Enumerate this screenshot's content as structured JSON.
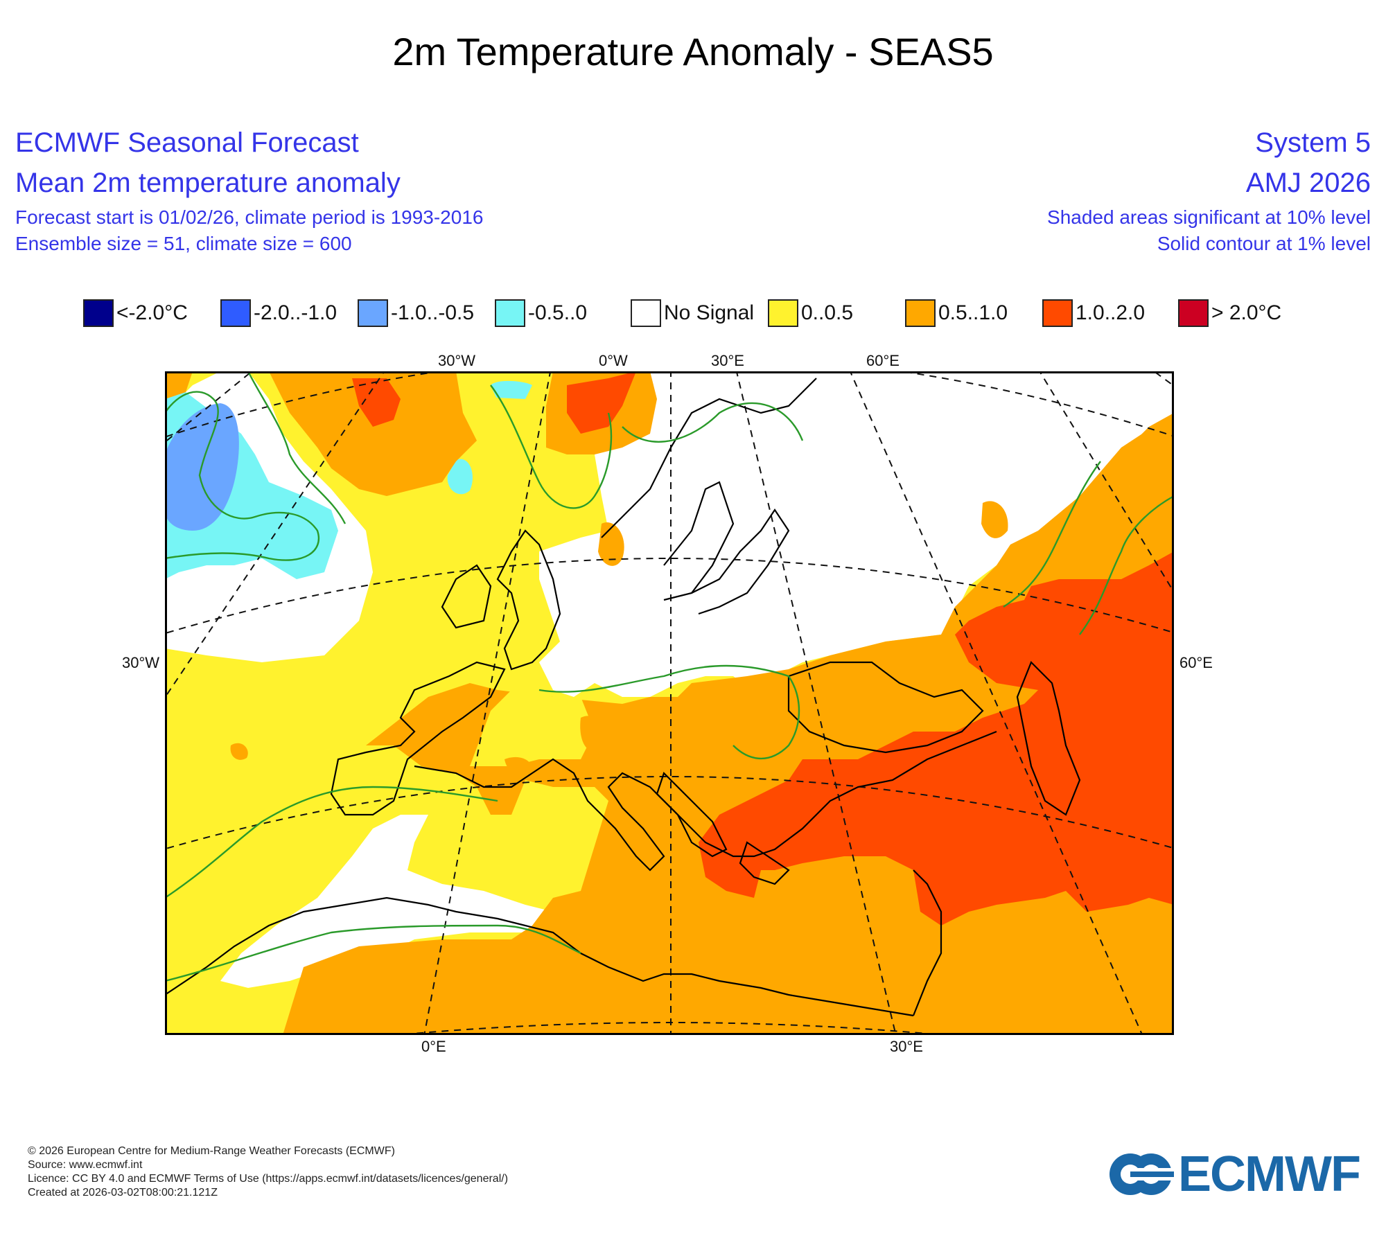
{
  "title": "2m Temperature Anomaly - SEAS5",
  "header": {
    "left": {
      "line1": "ECMWF Seasonal Forecast",
      "line2": "Mean 2m temperature anomaly",
      "line3": "Forecast start is 01/02/26, climate period is 1993-2016",
      "line4": "Ensemble size = 51, climate size = 600"
    },
    "right": {
      "line1": "System 5",
      "line2": "AMJ 2026",
      "line3": "Shaded areas significant at 10% level",
      "line4": "Solid contour at 1% level"
    }
  },
  "legend": [
    {
      "label": "<-2.0°C",
      "color": "#00008c"
    },
    {
      "label": "-2.0..-1.0",
      "color": "#2f5cff"
    },
    {
      "label": "-1.0..-0.5",
      "color": "#6aa6ff"
    },
    {
      "label": "-0.5..0",
      "color": "#77f5f5"
    },
    {
      "label": "No Signal",
      "color": "#ffffff"
    },
    {
      "label": "0..0.5",
      "color": "#fff22e"
    },
    {
      "label": "0.5..1.0",
      "color": "#ffa800"
    },
    {
      "label": "1.0..2.0",
      "color": "#ff4a00"
    },
    {
      "label": "> 2.0°C",
      "color": "#cc0022"
    }
  ],
  "map_labels": {
    "top": [
      "30°W",
      "0°W",
      "30°E",
      "60°E"
    ],
    "left": "30°W",
    "right": "60°E",
    "bottom": [
      "0°E",
      "30°E"
    ]
  },
  "footer": {
    "line1": "© 2026 European Centre for Medium-Range Weather Forecasts (ECMWF)",
    "line2": "Source: www.ecmwf.int",
    "line3": "Licence: CC BY 4.0 and ECMWF Terms of Use (https://apps.ecmwf.int/datasets/licences/general/)",
    "line4": "Created at 2026-03-02T08:00:21.121Z"
  },
  "logo": {
    "text": "ECMWF",
    "color": "#1b68a8"
  },
  "colors": {
    "header_text": "#3434e8",
    "significance_contour": "#2a9a2a",
    "coastline": "#000000"
  }
}
